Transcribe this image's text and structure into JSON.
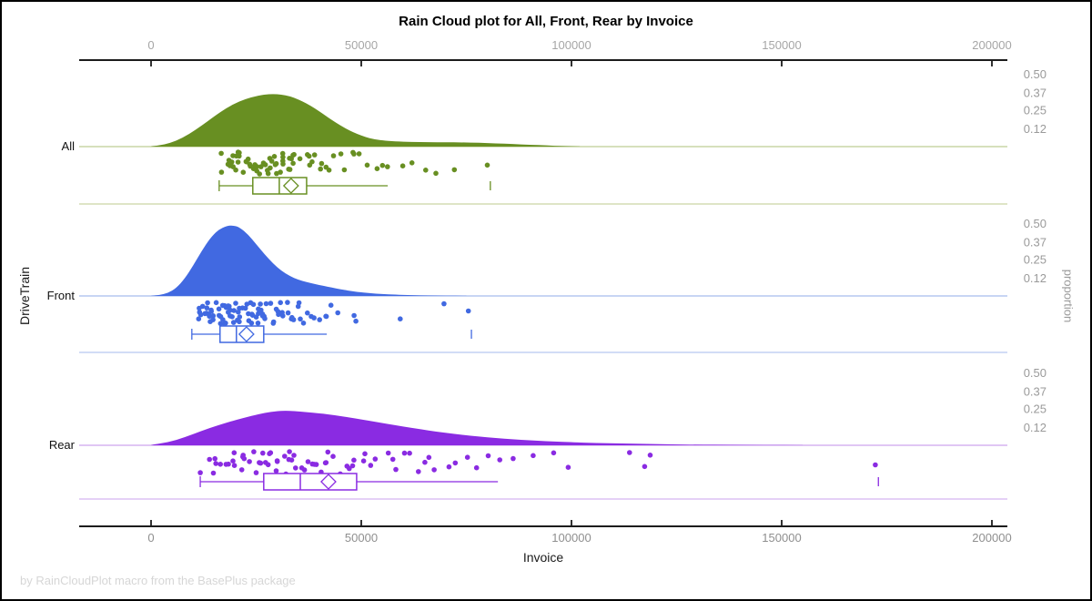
{
  "title": "Rain Cloud plot for All, Front, Rear by Invoice",
  "footer": "by RainCloudPlot macro from the BasePlus package",
  "x_axis": {
    "label": "Invoice",
    "tick_values": [
      0,
      50000,
      100000,
      150000,
      200000
    ],
    "tick_labels": [
      "0",
      "50000",
      "100000",
      "150000",
      "200000"
    ]
  },
  "left_axis": {
    "label": "DriveTrain",
    "categories": [
      "All",
      "Front",
      "Rear"
    ]
  },
  "right_axis": {
    "label": "proportion",
    "tick_values": [
      0.5,
      0.37,
      0.25,
      0.12
    ],
    "tick_labels": [
      "0.50",
      "0.37",
      "0.25",
      "0.12"
    ]
  },
  "palette": {
    "axis_color": "#1c1c1c",
    "top_tick_label_color": "#a6a6a6",
    "bottom_tick_label_color": "#8f8f8f",
    "right_tick_label_color": "#9a9a9a"
  },
  "chart_data": {
    "type": "raincloud",
    "title": "Rain Cloud plot for All, Front, Rear by Invoice",
    "xlabel": "Invoice",
    "ylabel_left": "DriveTrain",
    "ylabel_right": "proportion",
    "x_range": [
      -17000,
      204000
    ],
    "proportion_ticks": [
      0.5,
      0.37,
      0.25,
      0.12
    ],
    "categories": [
      "All",
      "Front",
      "Rear"
    ],
    "groups": [
      {
        "name": "All",
        "color": "#688F22",
        "line_color": "#C9D5A5",
        "density": [
          [
            0,
            0.002
          ],
          [
            3000,
            0.012
          ],
          [
            6000,
            0.04
          ],
          [
            9000,
            0.085
          ],
          [
            12000,
            0.145
          ],
          [
            15000,
            0.21
          ],
          [
            18000,
            0.27
          ],
          [
            21000,
            0.315
          ],
          [
            24000,
            0.345
          ],
          [
            27000,
            0.362
          ],
          [
            29000,
            0.366
          ],
          [
            31000,
            0.362
          ],
          [
            33000,
            0.35
          ],
          [
            35000,
            0.328
          ],
          [
            37000,
            0.3
          ],
          [
            39000,
            0.265
          ],
          [
            41000,
            0.225
          ],
          [
            43000,
            0.185
          ],
          [
            45000,
            0.148
          ],
          [
            47000,
            0.115
          ],
          [
            49000,
            0.088
          ],
          [
            51000,
            0.066
          ],
          [
            53000,
            0.052
          ],
          [
            55000,
            0.043
          ],
          [
            58000,
            0.036
          ],
          [
            62000,
            0.032
          ],
          [
            66000,
            0.031
          ],
          [
            70000,
            0.03
          ],
          [
            74000,
            0.029
          ],
          [
            78000,
            0.027
          ],
          [
            82000,
            0.023
          ],
          [
            86000,
            0.018
          ],
          [
            90000,
            0.013
          ],
          [
            94000,
            0.008
          ],
          [
            98000,
            0.004
          ],
          [
            102000,
            0.001
          ]
        ],
        "box": {
          "whisker_low": 16200,
          "q1": 24200,
          "median": 30500,
          "mean": 33300,
          "q3": 37000,
          "whisker_high": 56300,
          "outliers": [
            80700
          ]
        },
        "points": [
          16500,
          17100,
          17600,
          18000,
          18400,
          18800,
          19200,
          19500,
          19900,
          20300,
          20600,
          21000,
          21400,
          21700,
          22100,
          22500,
          22800,
          23200,
          23600,
          23900,
          24300,
          24700,
          25000,
          25400,
          25800,
          26100,
          26500,
          26900,
          27200,
          27600,
          28000,
          28300,
          28700,
          29100,
          29400,
          29800,
          30200,
          30500,
          30900,
          31300,
          31600,
          32000,
          32400,
          32700,
          33100,
          33500,
          33800,
          34200,
          34900,
          35600,
          36300,
          37000,
          37700,
          38400,
          39200,
          40000,
          40900,
          41800,
          42800,
          43800,
          44900,
          46000,
          47200,
          48500,
          50000,
          51500,
          53200,
          55000,
          56300,
          60500,
          62500,
          66000,
          68500,
          72000,
          80700
        ]
      },
      {
        "name": "Front",
        "color": "#4169E1",
        "line_color": "#B6C7F0",
        "density": [
          [
            0,
            0.001
          ],
          [
            2000,
            0.006
          ],
          [
            4000,
            0.02
          ],
          [
            6000,
            0.055
          ],
          [
            8000,
            0.12
          ],
          [
            10000,
            0.21
          ],
          [
            12000,
            0.31
          ],
          [
            14000,
            0.4
          ],
          [
            16000,
            0.46
          ],
          [
            18000,
            0.487
          ],
          [
            19500,
            0.49
          ],
          [
            21000,
            0.478
          ],
          [
            23000,
            0.43
          ],
          [
            25000,
            0.36
          ],
          [
            27000,
            0.29
          ],
          [
            29000,
            0.225
          ],
          [
            31000,
            0.175
          ],
          [
            33000,
            0.138
          ],
          [
            35000,
            0.113
          ],
          [
            37000,
            0.096
          ],
          [
            39000,
            0.082
          ],
          [
            41000,
            0.07
          ],
          [
            43000,
            0.058
          ],
          [
            45000,
            0.047
          ],
          [
            47000,
            0.037
          ],
          [
            49000,
            0.028
          ],
          [
            52000,
            0.019
          ],
          [
            55000,
            0.013
          ],
          [
            58000,
            0.009
          ],
          [
            62000,
            0.005
          ],
          [
            66000,
            0.003
          ],
          [
            70000,
            0.002
          ],
          [
            75000,
            0.001
          ]
        ],
        "box": {
          "whisker_low": 9700,
          "q1": 16400,
          "median": 20300,
          "mean": 22700,
          "q3": 26800,
          "whisker_high": 41800,
          "outliers": [
            76200
          ]
        },
        "points": [
          11000,
          11400,
          11800,
          12100,
          12400,
          12700,
          13000,
          13300,
          13600,
          13900,
          14100,
          14400,
          14600,
          14900,
          15100,
          15400,
          15600,
          15900,
          16100,
          16400,
          16600,
          16900,
          17100,
          17400,
          17600,
          17900,
          18100,
          18400,
          18600,
          18900,
          19100,
          19400,
          19600,
          19900,
          20100,
          20400,
          20600,
          20900,
          21100,
          21400,
          21600,
          21900,
          22100,
          22400,
          22700,
          23000,
          23300,
          23600,
          23900,
          24200,
          24500,
          24800,
          25100,
          25400,
          25700,
          26000,
          26300,
          26600,
          26900,
          27200,
          27500,
          27900,
          28300,
          28700,
          29100,
          29500,
          29900,
          30300,
          30700,
          31100,
          31600,
          32100,
          32600,
          33100,
          33700,
          34300,
          34900,
          35500,
          36200,
          36900,
          37600,
          38400,
          39200,
          40000,
          41000,
          42000,
          43500,
          45000,
          47400,
          48500,
          59700,
          69000,
          76200
        ]
      },
      {
        "name": "Rear",
        "color": "#8A2BE2",
        "line_color": "#D5B4F0",
        "density": [
          [
            0,
            0.004
          ],
          [
            4000,
            0.02
          ],
          [
            8000,
            0.055
          ],
          [
            12000,
            0.1
          ],
          [
            16000,
            0.14
          ],
          [
            20000,
            0.175
          ],
          [
            24000,
            0.205
          ],
          [
            27000,
            0.225
          ],
          [
            30000,
            0.238
          ],
          [
            32000,
            0.24
          ],
          [
            34000,
            0.238
          ],
          [
            37000,
            0.23
          ],
          [
            40000,
            0.222
          ],
          [
            44000,
            0.208
          ],
          [
            48000,
            0.19
          ],
          [
            52000,
            0.17
          ],
          [
            56000,
            0.15
          ],
          [
            60000,
            0.13
          ],
          [
            64000,
            0.112
          ],
          [
            68000,
            0.094
          ],
          [
            72000,
            0.079
          ],
          [
            76000,
            0.066
          ],
          [
            80000,
            0.055
          ],
          [
            84000,
            0.046
          ],
          [
            88000,
            0.038
          ],
          [
            92000,
            0.031
          ],
          [
            96000,
            0.026
          ],
          [
            100000,
            0.021
          ],
          [
            106000,
            0.016
          ],
          [
            112000,
            0.012
          ],
          [
            118000,
            0.009
          ],
          [
            124000,
            0.006
          ],
          [
            130000,
            0.004
          ],
          [
            138000,
            0.003
          ],
          [
            146000,
            0.002
          ],
          [
            155000,
            0.001
          ]
        ],
        "box": {
          "whisker_low": 11700,
          "q1": 26800,
          "median": 35500,
          "mean": 42200,
          "q3": 48900,
          "whisker_high": 82500,
          "outliers": [
            173000
          ]
        },
        "points": [
          12000,
          13500,
          14500,
          15500,
          16300,
          17000,
          17800,
          18500,
          19200,
          19800,
          20500,
          21100,
          21800,
          22400,
          23000,
          23600,
          24200,
          24800,
          25400,
          26000,
          26600,
          27200,
          27800,
          28400,
          29000,
          29600,
          30200,
          30800,
          31400,
          32000,
          32600,
          33200,
          33800,
          34500,
          35200,
          35900,
          36600,
          37300,
          38000,
          38800,
          39600,
          40400,
          41200,
          42000,
          42900,
          43800,
          44800,
          45800,
          46800,
          47900,
          49000,
          50200,
          51500,
          52800,
          54200,
          55600,
          57000,
          58500,
          60000,
          61500,
          63000,
          64500,
          66000,
          68000,
          70000,
          72000,
          74500,
          77000,
          80000,
          83000,
          86000,
          90000,
          95000,
          100000,
          113000,
          117500,
          119500,
          173000
        ]
      }
    ]
  }
}
